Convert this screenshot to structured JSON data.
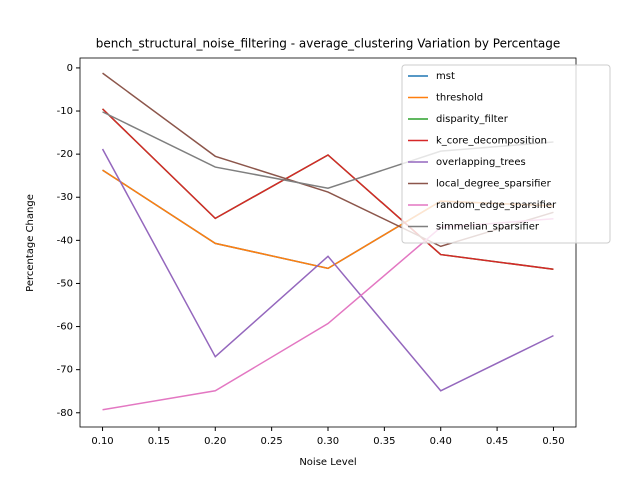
{
  "chart_data": {
    "type": "line",
    "title": "bench_structural_noise_filtering - average_clustering Variation by Percentage",
    "x_label": "Noise Level",
    "y_label": "Percentage Change",
    "x": [
      0.1,
      0.2,
      0.3,
      0.4,
      0.5
    ],
    "series": [
      {
        "name": "mst",
        "color": "#1f77b4",
        "values": [
          -23.7,
          -40.7,
          -46.5,
          -30.9,
          -32
        ]
      },
      {
        "name": "threshold",
        "color": "#ff7f0e",
        "values": [
          -23.7,
          -40.7,
          -46.5,
          -30.9,
          -32
        ]
      },
      {
        "name": "disparity_filter",
        "color": "#2ca02c",
        "values": [
          -9.5,
          -34.9,
          -20.2,
          -43.3,
          -46.7
        ]
      },
      {
        "name": "k_core_decomposition",
        "color": "#d62728",
        "values": [
          -9.5,
          -34.9,
          -20.2,
          -43.3,
          -46.7
        ]
      },
      {
        "name": "overlapping_trees",
        "color": "#9467bd",
        "values": [
          -18.8,
          -67,
          -43.7,
          -74.9,
          -62.1
        ]
      },
      {
        "name": "local_degree_sparsifier",
        "color": "#8c564b",
        "values": [
          -1.2,
          -20.5,
          -28.8,
          -41.4,
          -33.5
        ]
      },
      {
        "name": "random_edge_sparsifier",
        "color": "#e377c2",
        "values": [
          -79.3,
          -74.9,
          -59.3,
          -37,
          -35
        ]
      },
      {
        "name": "simmelian_sparsifier",
        "color": "#7f7f7f",
        "values": [
          -10.2,
          -23,
          -27.9,
          -19.3,
          -17.2
        ]
      }
    ],
    "xlim": [
      0.08,
      0.52
    ],
    "xticks": [
      {
        "value": 0.1,
        "label": "0.10"
      },
      {
        "value": 0.15,
        "label": "0.15"
      },
      {
        "value": 0.2,
        "label": "0.20"
      },
      {
        "value": 0.25,
        "label": "0.25"
      },
      {
        "value": 0.3,
        "label": "0.30"
      },
      {
        "value": 0.35,
        "label": "0.35"
      },
      {
        "value": 0.4,
        "label": "0.40"
      },
      {
        "value": 0.45,
        "label": "0.45"
      },
      {
        "value": 0.5,
        "label": "0.50"
      }
    ],
    "ylim": [
      -83.3,
      2.3
    ],
    "yticks": [
      0,
      -10,
      -20,
      -30,
      -40,
      -50,
      -60,
      -70,
      -80
    ],
    "legend": "upper right",
    "grid": false
  }
}
